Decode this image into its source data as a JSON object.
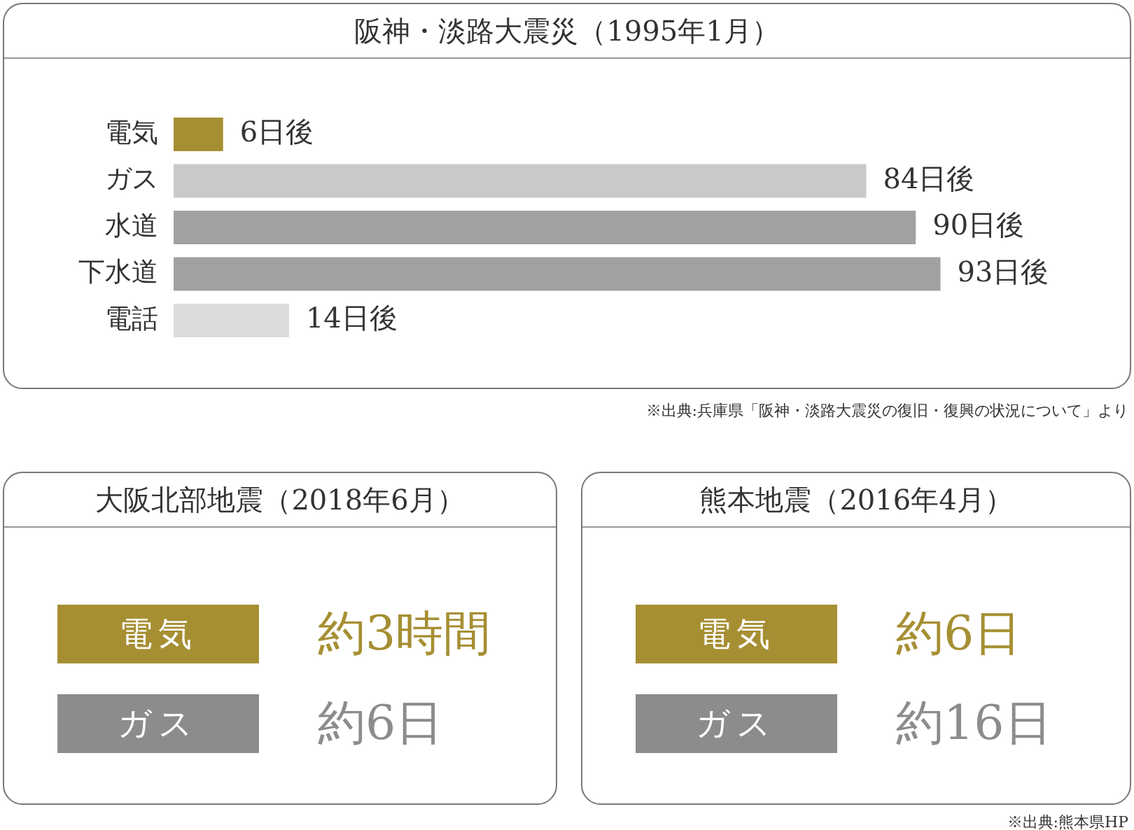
{
  "chart_data": [
    {
      "type": "bar",
      "orientation": "horizontal",
      "title": "阪神・淡路大震災（1995年1月）",
      "categories": [
        "電気",
        "ガス",
        "水道",
        "下水道",
        "電話"
      ],
      "values": [
        6,
        84,
        90,
        93,
        14
      ],
      "colors": [
        "#a68f33",
        "#c9c9c9",
        "#a1a1a1",
        "#a1a1a1",
        "#dcdcdc"
      ],
      "value_labels": [
        "6日後",
        "84日後",
        "90日後",
        "93日後",
        "14日後"
      ],
      "legend": false,
      "tick_labels": "y",
      "annotations": [
        "※出典:兵庫県「阪神・淡路大震災の復旧・復興の状況について」より"
      ]
    },
    {
      "type": "other",
      "title": "大阪北部地震（2018年6月）",
      "categories": [
        "電気",
        "ガス"
      ],
      "value_labels": [
        "約3時間",
        "約6日"
      ],
      "colors": [
        "#a68f33",
        "#8c8c8c"
      ]
    },
    {
      "type": "other",
      "title": "熊本地震（2016年4月）",
      "categories": [
        "電気",
        "ガス"
      ],
      "value_labels": [
        "約6日",
        "約16日"
      ],
      "colors": [
        "#a68f33",
        "#8c8c8c"
      ],
      "annotations": [
        "※出典:熊本県HP"
      ]
    }
  ]
}
